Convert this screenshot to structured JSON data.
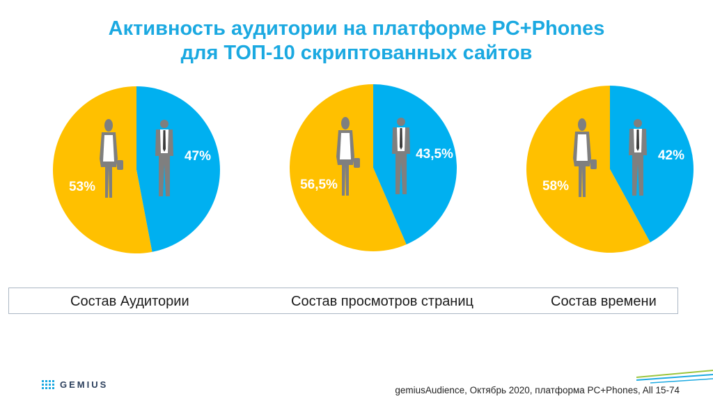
{
  "title_line1": "Активность аудитории на платформе PC+Phones",
  "title_line2": "для ТОП-10 скриптованных сайтов",
  "colors": {
    "male": "#00b0f0",
    "female": "#ffc000",
    "title": "#1ba9e1",
    "silhouette": "#7f7f7f"
  },
  "chart_data": [
    {
      "type": "pie",
      "caption": "Состав Аудитории",
      "series": [
        {
          "name": "male",
          "value": 47,
          "label": "47%"
        },
        {
          "name": "female",
          "value": 53,
          "label": "53%"
        }
      ]
    },
    {
      "type": "pie",
      "caption": "Состав просмотров страниц",
      "series": [
        {
          "name": "male",
          "value": 43.5,
          "label": "43,5%"
        },
        {
          "name": "female",
          "value": 56.5,
          "label": "56,5%"
        }
      ]
    },
    {
      "type": "pie",
      "caption": "Состав времени",
      "series": [
        {
          "name": "male",
          "value": 42,
          "label": "42%"
        },
        {
          "name": "female",
          "value": 58,
          "label": "58%"
        }
      ]
    }
  ],
  "logo": "GEMIUS",
  "source": "gemiusAudience, Октябрь 2020, платформа PC+Phones, All 15-74"
}
